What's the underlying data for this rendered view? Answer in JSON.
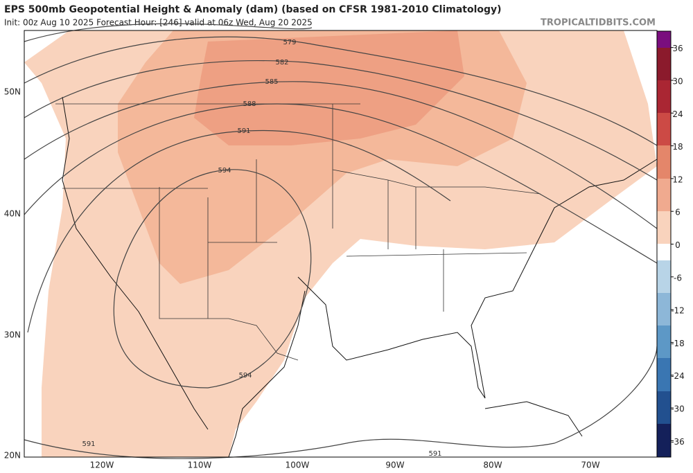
{
  "header": {
    "title": "EPS 500mb Geopotential Height & Anomaly (dam) (based on CFSR 1981-2010 Climatology)",
    "subtitle": "Init: 00z Aug 10 2025   Forecast Hour: [246]   valid at 06z Wed, Aug 20 2025",
    "site": "TROPICALTIDBITS.COM"
  },
  "map": {
    "lat_labels": [
      "50N",
      "40N",
      "30N",
      "20N"
    ],
    "lon_labels": [
      "120W",
      "110W",
      "100W",
      "90W",
      "80W",
      "70W"
    ],
    "contour_labels": [
      "579",
      "582",
      "585",
      "588",
      "591",
      "594",
      "594",
      "591",
      "591"
    ]
  },
  "colorbar": {
    "ticks": [
      36,
      30,
      24,
      18,
      12,
      6,
      0,
      -6,
      -12,
      -18,
      -24,
      -30,
      -36
    ],
    "lim": [
      -39,
      39
    ]
  }
}
